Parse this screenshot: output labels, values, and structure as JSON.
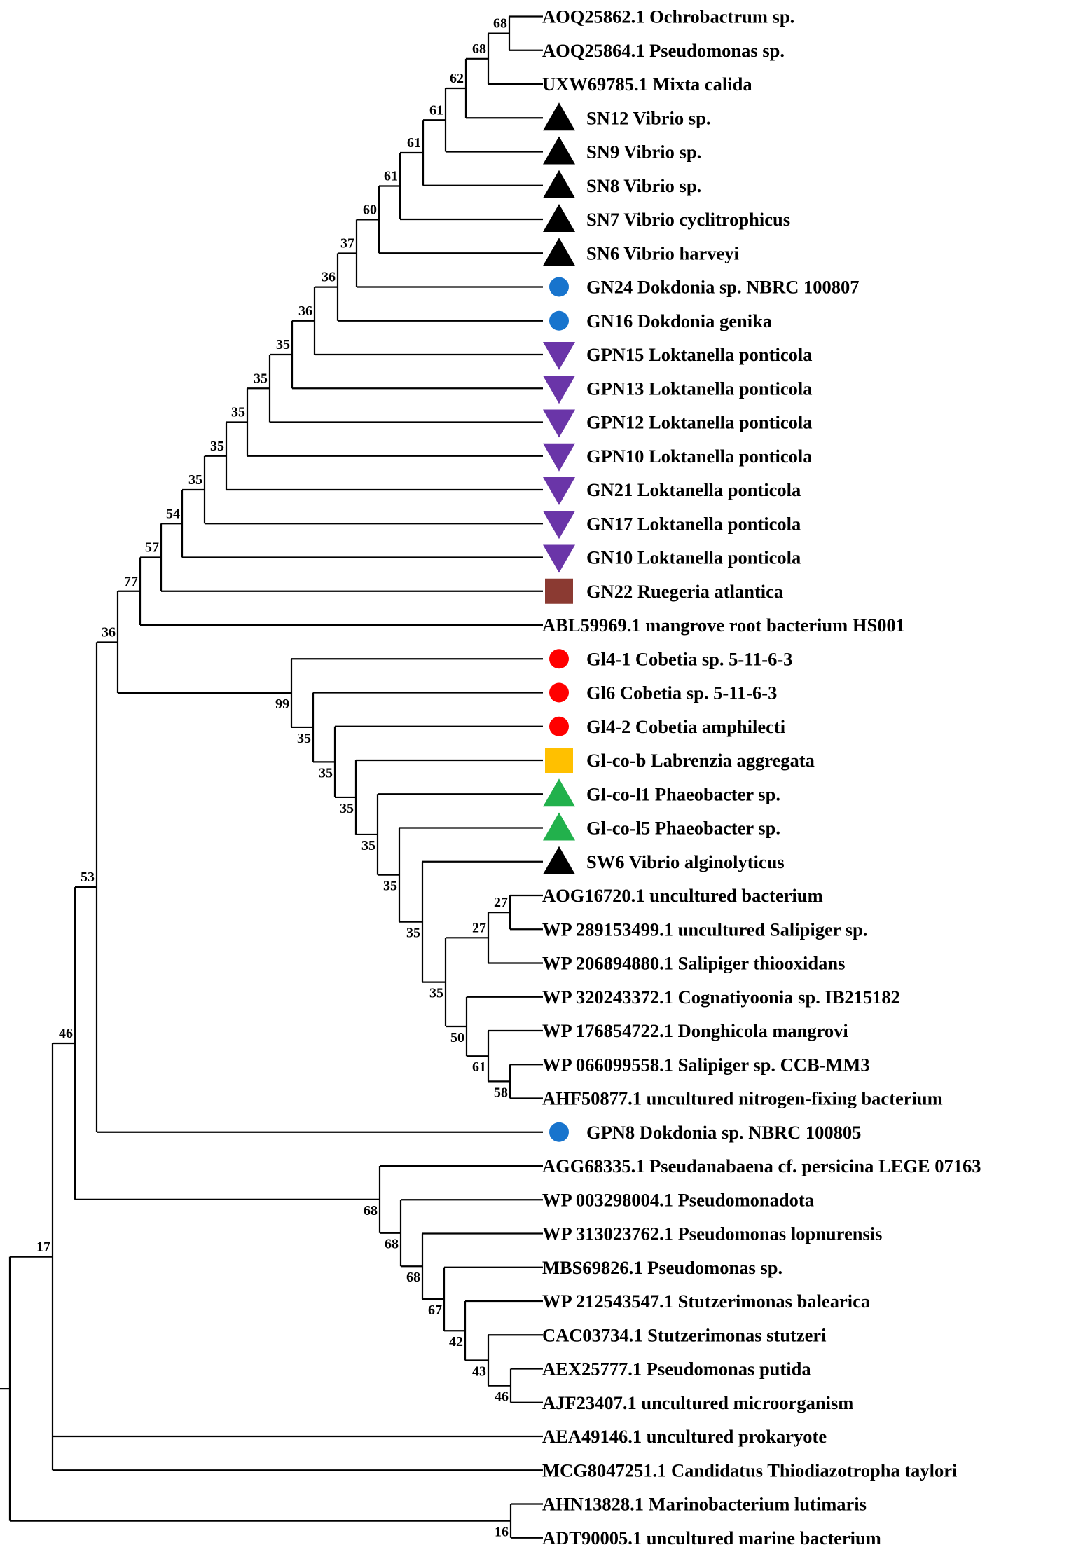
{
  "figure": "phylogenetic-tree",
  "marker_colors": {
    "black": "#000000",
    "blue": "#1874cd",
    "purple": "#6a35a8",
    "brown": "#8b3a32",
    "red": "#ff0000",
    "orange": "#ffc000",
    "green": "#22b14c"
  },
  "leaves": [
    {
      "label": "AOQ25862.1 Ochrobactrum sp.",
      "marker": null
    },
    {
      "label": "AOQ25864.1 Pseudomonas sp.",
      "marker": null
    },
    {
      "label": "UXW69785.1 Mixta calida",
      "marker": null
    },
    {
      "label": "SN12 Vibrio sp.",
      "marker": "triangle-up",
      "color": "black"
    },
    {
      "label": "SN9 Vibrio sp.",
      "marker": "triangle-up",
      "color": "black"
    },
    {
      "label": "SN8 Vibrio sp.",
      "marker": "triangle-up",
      "color": "black"
    },
    {
      "label": "SN7 Vibrio cyclitrophicus",
      "marker": "triangle-up",
      "color": "black"
    },
    {
      "label": "SN6 Vibrio harveyi",
      "marker": "triangle-up",
      "color": "black"
    },
    {
      "label": "GN24 Dokdonia sp. NBRC 100807",
      "marker": "circle",
      "color": "blue"
    },
    {
      "label": "GN16 Dokdonia genika",
      "marker": "circle",
      "color": "blue"
    },
    {
      "label": "GPN15 Loktanella ponticola",
      "marker": "triangle-down",
      "color": "purple"
    },
    {
      "label": "GPN13 Loktanella ponticola",
      "marker": "triangle-down",
      "color": "purple"
    },
    {
      "label": "GPN12 Loktanella ponticola",
      "marker": "triangle-down",
      "color": "purple"
    },
    {
      "label": "GPN10 Loktanella ponticola",
      "marker": "triangle-down",
      "color": "purple"
    },
    {
      "label": "GN21 Loktanella ponticola",
      "marker": "triangle-down",
      "color": "purple"
    },
    {
      "label": "GN17 Loktanella ponticola",
      "marker": "triangle-down",
      "color": "purple"
    },
    {
      "label": "GN10 Loktanella ponticola",
      "marker": "triangle-down",
      "color": "purple"
    },
    {
      "label": "GN22 Ruegeria atlantica",
      "marker": "square",
      "color": "brown"
    },
    {
      "label": "ABL59969.1 mangrove root bacterium HS001",
      "marker": null
    },
    {
      "label": "Gl4-1 Cobetia sp. 5-11-6-3",
      "marker": "circle",
      "color": "red"
    },
    {
      "label": "Gl6 Cobetia sp. 5-11-6-3",
      "marker": "circle",
      "color": "red"
    },
    {
      "label": "Gl4-2 Cobetia amphilecti",
      "marker": "circle",
      "color": "red"
    },
    {
      "label": "Gl-co-b Labrenzia aggregata",
      "marker": "square",
      "color": "orange"
    },
    {
      "label": "Gl-co-l1 Phaeobacter sp.",
      "marker": "triangle-up",
      "color": "green"
    },
    {
      "label": "Gl-co-l5 Phaeobacter sp.",
      "marker": "triangle-up",
      "color": "green"
    },
    {
      "label": "SW6 Vibrio alginolyticus",
      "marker": "triangle-up",
      "color": "black"
    },
    {
      "label": "AOG16720.1 uncultured bacterium",
      "marker": null
    },
    {
      "label": "WP 289153499.1 uncultured Salipiger sp.",
      "marker": null
    },
    {
      "label": "WP 206894880.1 Salipiger thiooxidans",
      "marker": null
    },
    {
      "label": "WP 320243372.1 Cognatiyoonia sp. IB215182",
      "marker": null
    },
    {
      "label": "WP 176854722.1 Donghicola mangrovi",
      "marker": null
    },
    {
      "label": "WP 066099558.1 Salipiger sp. CCB-MM3",
      "marker": null
    },
    {
      "label": "AHF50877.1 uncultured nitrogen-fixing bacterium",
      "marker": null
    },
    {
      "label": "GPN8 Dokdonia sp. NBRC 100805",
      "marker": "circle",
      "color": "blue"
    },
    {
      "label": "AGG68335.1 Pseudanabaena cf. persicina LEGE 07163",
      "marker": null
    },
    {
      "label": "WP 003298004.1 Pseudomonadota",
      "marker": null
    },
    {
      "label": "WP 313023762.1 Pseudomonas lopnurensis",
      "marker": null
    },
    {
      "label": "MBS69826.1 Pseudomonas sp.",
      "marker": null
    },
    {
      "label": "WP 212543547.1 Stutzerimonas balearica",
      "marker": null
    },
    {
      "label": "CAC03734.1 Stutzerimonas stutzeri",
      "marker": null
    },
    {
      "label": "AEX25777.1 Pseudomonas putida",
      "marker": null
    },
    {
      "label": "AJF23407.1 uncultured microorganism",
      "marker": null
    },
    {
      "label": "AEA49146.1 uncultured prokaryote",
      "marker": null
    },
    {
      "label": "MCG8047251.1 Candidatus Thiodiazotropha taylori",
      "marker": null
    },
    {
      "label": "AHN13828.1 Marinobacterium lutimaris",
      "marker": null
    },
    {
      "label": "ADT90005.1 uncultured marine bacterium",
      "marker": null
    }
  ],
  "nodes": [
    {
      "id": "n1",
      "children": [
        0,
        1
      ],
      "support": "68"
    },
    {
      "id": "n2",
      "children": [
        "n1",
        2
      ],
      "support": "68"
    },
    {
      "id": "n3",
      "children": [
        "n2",
        3
      ],
      "support": "62"
    },
    {
      "id": "n4",
      "children": [
        "n3",
        4
      ],
      "support": "61"
    },
    {
      "id": "n5",
      "children": [
        "n4",
        5
      ],
      "support": "61"
    },
    {
      "id": "n6",
      "children": [
        "n5",
        6
      ],
      "support": "61"
    },
    {
      "id": "n7",
      "children": [
        "n6",
        7
      ],
      "support": "60"
    },
    {
      "id": "n8",
      "children": [
        "n7",
        8
      ],
      "support": "37"
    },
    {
      "id": "n9",
      "children": [
        "n8",
        9
      ],
      "support": "36"
    },
    {
      "id": "n10",
      "children": [
        "n9",
        10
      ],
      "support": "36"
    },
    {
      "id": "n11",
      "children": [
        "n10",
        11
      ],
      "support": "35"
    },
    {
      "id": "n12",
      "children": [
        "n11",
        12
      ],
      "support": "35"
    },
    {
      "id": "n13",
      "children": [
        "n12",
        13
      ],
      "support": "35"
    },
    {
      "id": "n14",
      "children": [
        "n13",
        14
      ],
      "support": "35"
    },
    {
      "id": "n15",
      "children": [
        "n14",
        15
      ],
      "support": "35"
    },
    {
      "id": "n16",
      "children": [
        "n15",
        16
      ],
      "support": "54"
    },
    {
      "id": "n17",
      "children": [
        "n16",
        17
      ],
      "support": "57"
    },
    {
      "id": "n18",
      "children": [
        "n17",
        18
      ],
      "support": "77"
    },
    {
      "id": "c1",
      "children": [
        26,
        27
      ],
      "support": "27"
    },
    {
      "id": "c2",
      "children": [
        "c1",
        28
      ],
      "support": "27"
    },
    {
      "id": "d1",
      "children": [
        31,
        32
      ],
      "support": "58"
    },
    {
      "id": "d2",
      "children": [
        30,
        "d1"
      ],
      "support": "61"
    },
    {
      "id": "d3",
      "children": [
        29,
        "d2"
      ],
      "support": "50"
    },
    {
      "id": "e1",
      "children": [
        "c2",
        "d3"
      ],
      "support": "35"
    },
    {
      "id": "e2",
      "children": [
        25,
        "e1"
      ],
      "support": "35"
    },
    {
      "id": "e3",
      "children": [
        24,
        "e2"
      ],
      "support": "35"
    },
    {
      "id": "e4",
      "children": [
        23,
        "e3"
      ],
      "support": "35"
    },
    {
      "id": "e5",
      "children": [
        22,
        "e4"
      ],
      "support": "35"
    },
    {
      "id": "e6",
      "children": [
        21,
        "e5"
      ],
      "support": "35"
    },
    {
      "id": "e7",
      "children": [
        20,
        "e6"
      ],
      "support": "35"
    },
    {
      "id": "e8",
      "children": [
        19,
        "e7"
      ],
      "support": "99"
    },
    {
      "id": "r36",
      "children": [
        "n18",
        "e8"
      ],
      "support": "36"
    },
    {
      "id": "r53",
      "children": [
        "r36",
        33
      ],
      "support": "53"
    },
    {
      "id": "f1",
      "children": [
        40,
        41
      ],
      "support": "46"
    },
    {
      "id": "f2",
      "children": [
        39,
        "f1"
      ],
      "support": "43"
    },
    {
      "id": "f3",
      "children": [
        38,
        "f2"
      ],
      "support": "42"
    },
    {
      "id": "f4",
      "children": [
        37,
        "f3"
      ],
      "support": "67"
    },
    {
      "id": "f5",
      "children": [
        36,
        "f4"
      ],
      "support": "68"
    },
    {
      "id": "f6",
      "children": [
        35,
        "f5"
      ],
      "support": "68"
    },
    {
      "id": "f7",
      "children": [
        34,
        "f6"
      ],
      "support": "68"
    },
    {
      "id": "r46",
      "children": [
        "r53",
        "f7"
      ],
      "support": "46"
    },
    {
      "id": "r17",
      "children": [
        "r46",
        42,
        43
      ],
      "support": "17"
    },
    {
      "id": "g1",
      "children": [
        44,
        45
      ],
      "support": "16"
    },
    {
      "id": "root",
      "children": [
        "r17",
        "g1"
      ],
      "support": ""
    }
  ]
}
